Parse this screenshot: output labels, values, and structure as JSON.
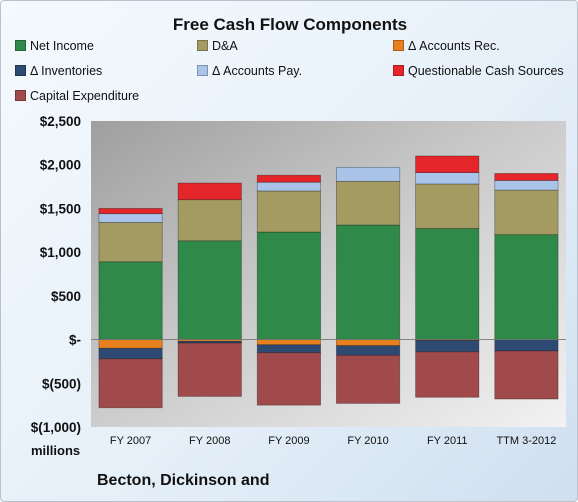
{
  "chart_data": {
    "type": "bar",
    "stacked": true,
    "title": "Free Cash Flow Components",
    "xlabel": "",
    "ylabel": "",
    "units_label": "millions",
    "categories": [
      "FY 2007",
      "FY 2008",
      "FY 2009",
      "FY 2010",
      "FY 2011",
      "TTM 3-2012"
    ],
    "ylim": [
      -1000,
      2500
    ],
    "yticks": [
      -1000,
      -500,
      0,
      500,
      1000,
      1500,
      2000,
      2500
    ],
    "ytick_labels": [
      "$(1,000)",
      "$(500)",
      "$-",
      "$500",
      "$1,000",
      "$1,500",
      "$2,000",
      "$2,500"
    ],
    "grid": false,
    "legend_position": "top",
    "series": [
      {
        "name": "Net Income",
        "color": "#2f8a4a",
        "values": [
          890,
          1130,
          1230,
          1310,
          1270,
          1200
        ]
      },
      {
        "name": "D&A",
        "color": "#a39b62",
        "values": [
          450,
          470,
          470,
          500,
          510,
          510
        ]
      },
      {
        "name": "Δ Accounts Rec.",
        "color": "#e8801f",
        "values": [
          -100,
          -20,
          -60,
          -70,
          -10,
          0
        ]
      },
      {
        "name": "Δ Inventories",
        "color": "#2f4a72",
        "values": [
          -120,
          -20,
          -90,
          -110,
          -130,
          -130
        ]
      },
      {
        "name": "Δ Accounts Pay.",
        "color": "#a9c4e8",
        "values": [
          100,
          0,
          100,
          160,
          130,
          110
        ]
      },
      {
        "name": "Questionable Cash Sources",
        "color": "#e4262a",
        "values": [
          60,
          190,
          80,
          0,
          190,
          80
        ]
      },
      {
        "name": "Capital Expenditure",
        "color": "#a04a4c",
        "values": [
          -560,
          -610,
          -600,
          -550,
          -520,
          -550
        ]
      }
    ]
  },
  "footer": "Becton, Dickinson and"
}
